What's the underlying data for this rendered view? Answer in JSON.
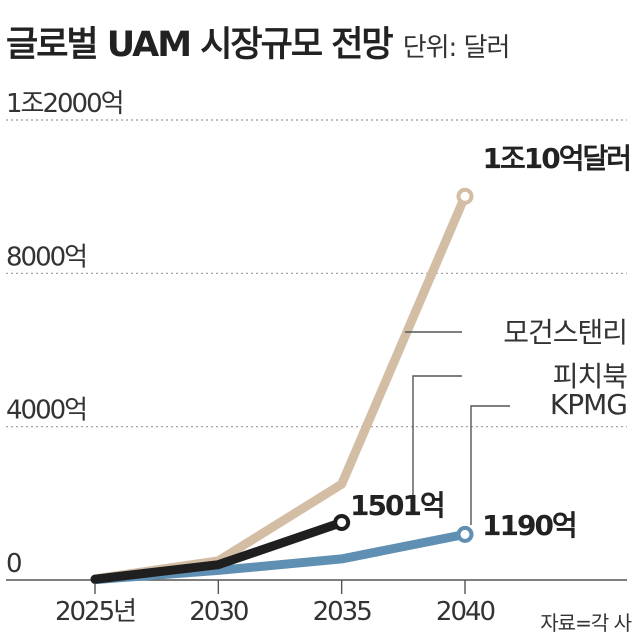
{
  "header": {
    "title": "글로벌 UAM 시장규모 전망",
    "unit": "단위: 달러"
  },
  "source": "자료=각 사",
  "colors": {
    "morgan": "#d3bea5",
    "pitch": "#1f1f1f",
    "kpmg": "#5f8fb2",
    "grid": "#999999",
    "axis": "#555555"
  },
  "chart_data": {
    "type": "line",
    "title": "글로벌 UAM 시장규모 전망",
    "unit": "단위: 달러",
    "x": [
      2025,
      2030,
      2035,
      2040
    ],
    "x_tick_labels": [
      "2025년",
      "2030",
      "2035",
      "2040"
    ],
    "ylim": [
      0,
      12000
    ],
    "y_ticks": [
      0,
      4000,
      8000,
      12000
    ],
    "y_tick_labels": [
      "0",
      "4000억",
      "8000억",
      "1조2000억"
    ],
    "y_unit": "억 달러",
    "grid": "horizontal dashed",
    "series": [
      {
        "key": "morgan",
        "name": "모건스탠리",
        "x": [
          2025,
          2030,
          2035,
          2040
        ],
        "values": [
          30,
          500,
          2500,
          10010
        ],
        "end_label": "1조10억달러"
      },
      {
        "key": "pitch",
        "name": "피치북",
        "x": [
          2025,
          2030,
          2035
        ],
        "values": [
          20,
          400,
          1501
        ],
        "end_label": "1501억"
      },
      {
        "key": "kpmg",
        "name": "KPMG",
        "x": [
          2025,
          2030,
          2035,
          2040
        ],
        "values": [
          10,
          250,
          550,
          1190
        ],
        "end_label": "1190억"
      }
    ]
  }
}
